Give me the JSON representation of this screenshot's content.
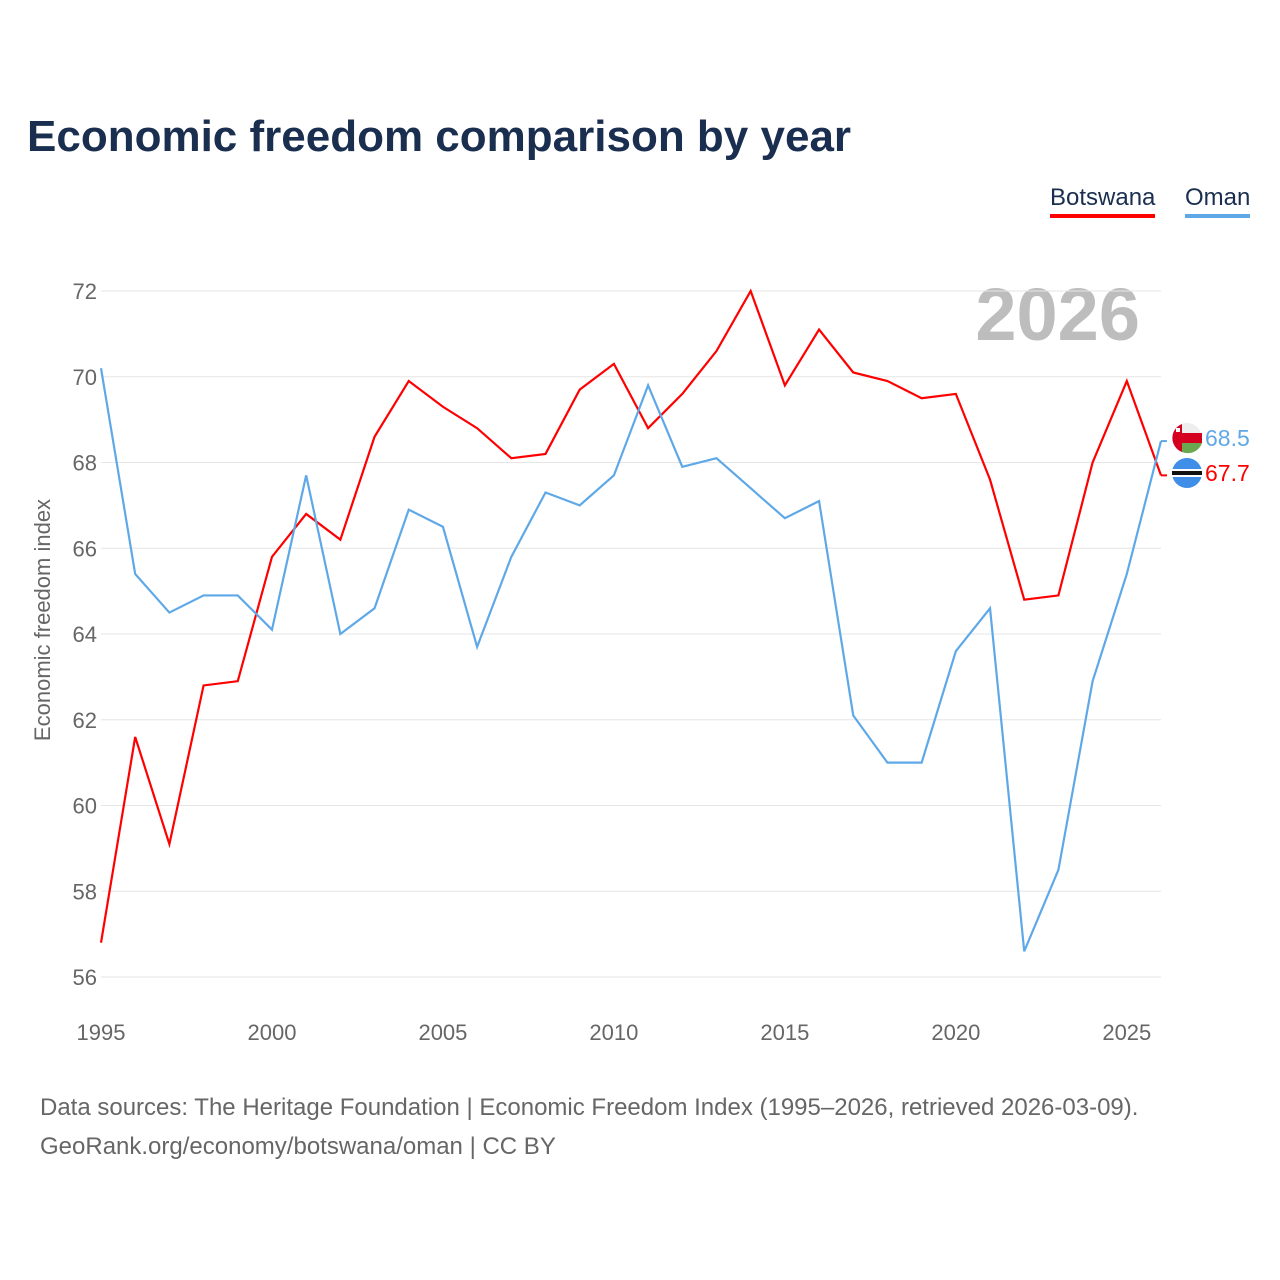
{
  "chart_data": {
    "type": "line",
    "title": "Economic freedom comparison by year",
    "xlabel": "",
    "ylabel": "Economic freedom index",
    "xlim": [
      1995,
      2026
    ],
    "ylim": [
      56,
      72
    ],
    "yticks": [
      56,
      58,
      60,
      62,
      64,
      66,
      68,
      70,
      72
    ],
    "xticks": [
      1995,
      2000,
      2005,
      2010,
      2015,
      2020,
      2025
    ],
    "grid": true,
    "legend_position": "top-right",
    "watermark_year": "2026",
    "x": [
      1995,
      1996,
      1997,
      1998,
      1999,
      2000,
      2001,
      2002,
      2003,
      2004,
      2005,
      2006,
      2007,
      2008,
      2009,
      2010,
      2011,
      2012,
      2013,
      2014,
      2015,
      2016,
      2017,
      2018,
      2019,
      2020,
      2021,
      2022,
      2023,
      2024,
      2025,
      2026
    ],
    "series": [
      {
        "name": "Botswana",
        "color": "#ff0000",
        "end_label": "67.7",
        "flag": "botswana-flag",
        "values": [
          56.8,
          61.6,
          59.1,
          62.8,
          62.9,
          65.8,
          66.8,
          66.2,
          68.6,
          69.9,
          69.3,
          68.8,
          68.1,
          68.2,
          69.7,
          70.3,
          68.8,
          69.6,
          70.6,
          72.0,
          69.8,
          71.1,
          70.1,
          69.9,
          69.5,
          69.6,
          67.6,
          64.8,
          64.9,
          68.0,
          69.9,
          67.7
        ]
      },
      {
        "name": "Oman",
        "color": "#5fa8e8",
        "end_label": "68.5",
        "flag": "oman-flag",
        "values": [
          70.2,
          65.4,
          64.5,
          64.9,
          64.9,
          64.1,
          67.7,
          64.0,
          64.6,
          66.9,
          66.5,
          63.7,
          65.8,
          67.3,
          67.0,
          67.7,
          69.8,
          67.9,
          68.1,
          67.4,
          66.7,
          67.1,
          62.1,
          61.0,
          61.0,
          63.6,
          64.6,
          56.6,
          58.5,
          62.9,
          65.4,
          68.5
        ]
      }
    ]
  },
  "source": {
    "line1": "Data sources: The Heritage Foundation | Economic Freedom Index (1995–2026, retrieved 2026-03-09).",
    "line2": "GeoRank.org/economy/botswana/oman | CC BY"
  }
}
